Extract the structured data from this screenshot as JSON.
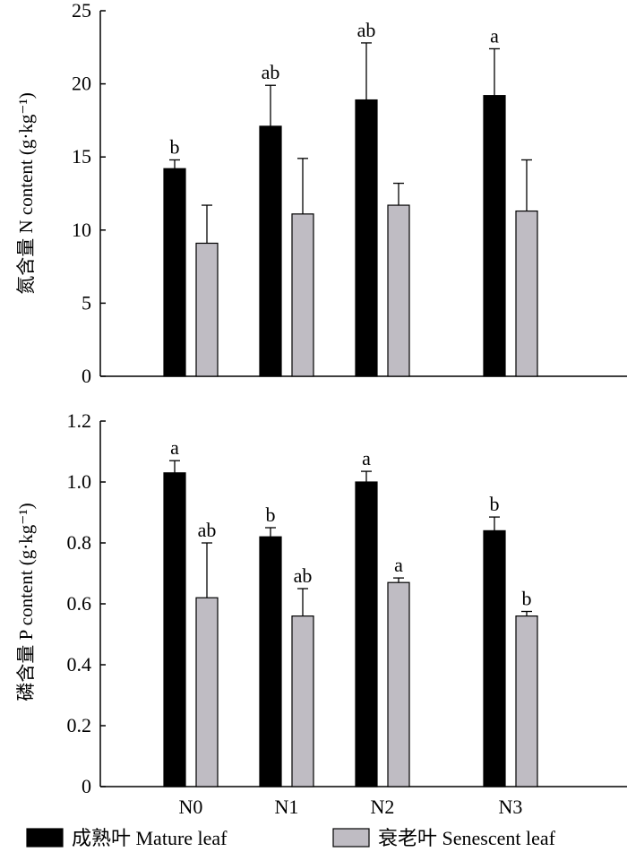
{
  "chart_data": [
    {
      "type": "bar",
      "ylabel": "氮含量 N content (g·kg⁻¹)",
      "categories": [
        "N0",
        "N1",
        "N2",
        "N3"
      ],
      "ylim": [
        0,
        25
      ],
      "yticks": [
        "0",
        "5",
        "10",
        "15",
        "20",
        "25"
      ],
      "series": [
        {
          "name": "成熟叶 Mature leaf",
          "color": "#000000",
          "values": [
            14.2,
            17.1,
            18.9,
            19.2
          ],
          "errors": [
            0.6,
            2.8,
            3.9,
            3.2
          ],
          "labels": [
            "b",
            "ab",
            "ab",
            "a"
          ]
        },
        {
          "name": "衰老叶 Senescent leaf",
          "color": "#bfbcc3",
          "values": [
            9.1,
            11.1,
            11.7,
            11.3
          ],
          "errors": [
            2.6,
            3.8,
            1.5,
            3.5
          ],
          "labels": [
            "",
            "",
            "",
            ""
          ]
        }
      ],
      "grid": false
    },
    {
      "type": "bar",
      "ylabel": "磷含量 P content (g·kg⁻¹)",
      "categories": [
        "N0",
        "N1",
        "N2",
        "N3"
      ],
      "ylim": [
        0,
        1.2
      ],
      "yticks": [
        "0",
        "0.2",
        "0.4",
        "0.6",
        "0.8",
        "1.0",
        "1.2"
      ],
      "series": [
        {
          "name": "成熟叶 Mature leaf",
          "color": "#000000",
          "values": [
            1.03,
            0.82,
            1.0,
            0.84
          ],
          "errors": [
            0.04,
            0.03,
            0.035,
            0.045
          ],
          "labels": [
            "a",
            "b",
            "a",
            "b"
          ]
        },
        {
          "name": "衰老叶 Senescent leaf",
          "color": "#bfbcc3",
          "values": [
            0.62,
            0.56,
            0.67,
            0.56
          ],
          "errors": [
            0.18,
            0.09,
            0.015,
            0.015
          ],
          "labels": [
            "ab",
            "ab",
            "a",
            "b"
          ]
        }
      ],
      "grid": false
    }
  ],
  "legend": {
    "position": "bottom",
    "items": [
      "成熟叶 Mature leaf",
      "衰老叶 Senescent leaf"
    ]
  }
}
